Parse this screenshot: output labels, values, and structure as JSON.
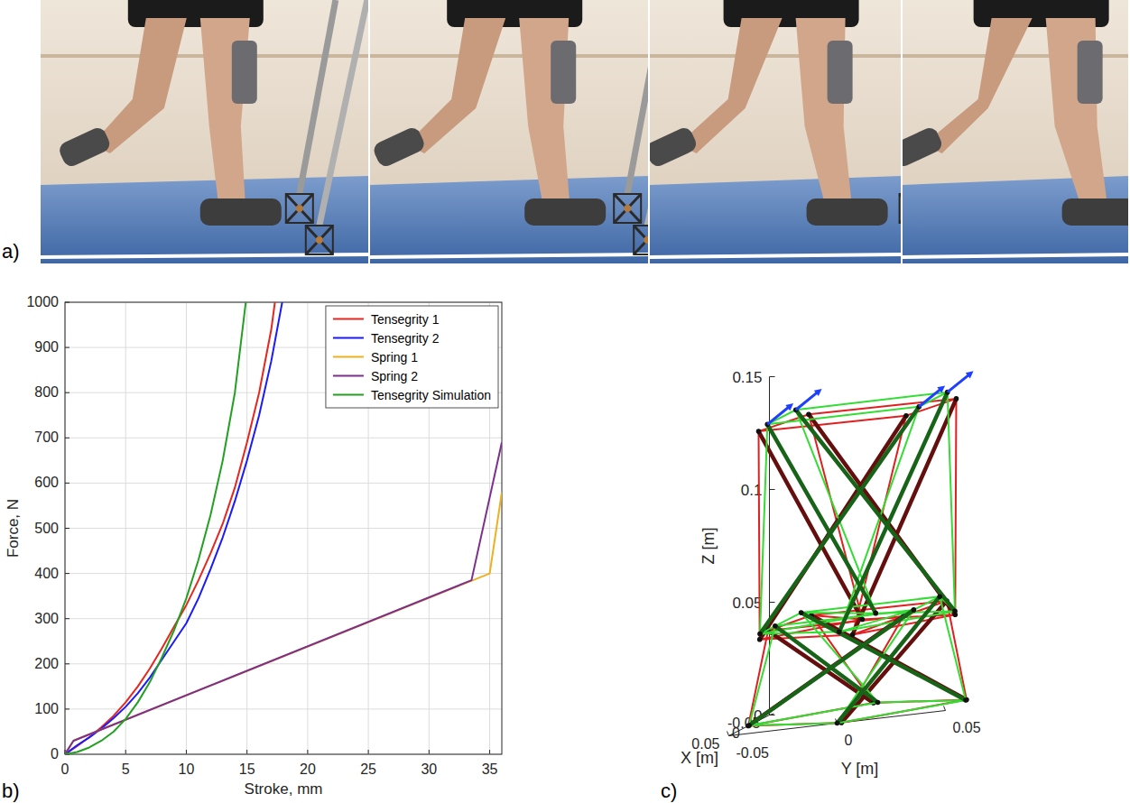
{
  "photo_panel": {
    "panel_label": "a)"
  },
  "chart_data": [
    {
      "type": "line",
      "panel_label": "b)",
      "xlabel": "Stroke, mm",
      "ylabel": "Force, N",
      "xlim": [
        0,
        36
      ],
      "ylim": [
        0,
        1000
      ],
      "xticks": [
        0,
        5,
        10,
        15,
        20,
        25,
        30,
        35
      ],
      "yticks": [
        0,
        100,
        200,
        300,
        400,
        500,
        600,
        700,
        800,
        900,
        1000
      ],
      "grid": true,
      "legend": "upper right",
      "series": [
        {
          "name": "Tensegrity 1",
          "color": "#e6261f",
          "x": [
            0,
            1,
            2,
            3,
            4,
            5,
            6,
            7,
            8,
            9,
            10,
            11,
            12,
            13,
            14,
            15,
            16,
            17,
            17.3
          ],
          "values": [
            0,
            18,
            38,
            60,
            85,
            115,
            150,
            190,
            235,
            283,
            330,
            385,
            445,
            510,
            590,
            690,
            800,
            940,
            1000
          ]
        },
        {
          "name": "Tensegrity 2",
          "color": "#1a1aff",
          "x": [
            0,
            1,
            2,
            3,
            4,
            5,
            6,
            7,
            8,
            9,
            10,
            11,
            12,
            13,
            14,
            15,
            16,
            17,
            17.9
          ],
          "values": [
            0,
            20,
            37,
            57,
            80,
            105,
            135,
            170,
            210,
            250,
            290,
            345,
            410,
            480,
            560,
            650,
            750,
            870,
            1000
          ]
        },
        {
          "name": "Spring 1",
          "color": "#edb120",
          "x": [
            0,
            0.7,
            35,
            36
          ],
          "values": [
            0,
            30,
            400,
            580
          ]
        },
        {
          "name": "Spring 2",
          "color": "#7e2f8e",
          "x": [
            0,
            0.7,
            33.5,
            36
          ],
          "values": [
            0,
            30,
            385,
            690
          ]
        },
        {
          "name": "Tensegrity Simulation",
          "color": "#22a022",
          "x": [
            0,
            1,
            2,
            3,
            4,
            5,
            6,
            7,
            8,
            9,
            10,
            11,
            12,
            13,
            14,
            14.9
          ],
          "values": [
            0,
            5,
            15,
            30,
            50,
            78,
            115,
            160,
            215,
            275,
            345,
            430,
            530,
            650,
            800,
            1000
          ]
        }
      ]
    },
    {
      "type": "wireframe3d",
      "panel_label": "c)",
      "xlabel": "X [m]",
      "ylabel": "Y [m]",
      "zlabel": "Z [m]",
      "xlim": [
        -0.05,
        0.05
      ],
      "ylim": [
        -0.05,
        0.05
      ],
      "zlim": [
        0,
        0.15
      ],
      "xticks": [
        -0.05,
        0,
        0.05
      ],
      "yticks": [
        -0.05,
        0,
        0.05
      ],
      "zticks": [
        0,
        0.05,
        0.1,
        0.15
      ],
      "grid": false,
      "struts": [
        [
          0,
          5
        ],
        [
          1,
          6
        ],
        [
          2,
          7
        ],
        [
          3,
          4
        ],
        [
          8,
          13
        ],
        [
          9,
          14
        ],
        [
          10,
          15
        ],
        [
          11,
          12
        ]
      ],
      "cables": [
        [
          0,
          1
        ],
        [
          1,
          2
        ],
        [
          2,
          3
        ],
        [
          3,
          0
        ],
        [
          4,
          5
        ],
        [
          5,
          6
        ],
        [
          6,
          7
        ],
        [
          7,
          4
        ],
        [
          8,
          9
        ],
        [
          9,
          10
        ],
        [
          10,
          11
        ],
        [
          11,
          8
        ],
        [
          12,
          13
        ],
        [
          13,
          14
        ],
        [
          14,
          15
        ],
        [
          15,
          12
        ],
        [
          0,
          4
        ],
        [
          1,
          5
        ],
        [
          2,
          6
        ],
        [
          3,
          7
        ],
        [
          8,
          12
        ],
        [
          9,
          13
        ],
        [
          10,
          14
        ],
        [
          11,
          15
        ],
        [
          4,
          8
        ],
        [
          5,
          9
        ],
        [
          6,
          10
        ],
        [
          7,
          11
        ]
      ],
      "series": [
        {
          "color": "#e02020",
          "nodes": [
            [
              0.05,
              0.002,
              0
            ],
            [
              -0.002,
              0.05,
              0
            ],
            [
              -0.05,
              -0.002,
              0
            ],
            [
              0.002,
              -0.05,
              0
            ],
            [
              0.036,
              0.028,
              0.043
            ],
            [
              -0.028,
              0.036,
              0.043
            ],
            [
              -0.036,
              -0.028,
              0.043
            ],
            [
              0.028,
              -0.036,
              0.043
            ],
            [
              0.044,
              0.006,
              0.038
            ],
            [
              -0.006,
              0.044,
              0.038
            ],
            [
              -0.044,
              -0.006,
              0.038
            ],
            [
              0.006,
              -0.044,
              0.038
            ],
            [
              0.04,
              0.03,
              0.132
            ],
            [
              -0.03,
              0.04,
              0.132
            ],
            [
              -0.04,
              -0.03,
              0.132
            ],
            [
              0.03,
              -0.04,
              0.132
            ]
          ]
        },
        {
          "color": "#33dd33",
          "nodes": [
            [
              0.05,
              0,
              0
            ],
            [
              0,
              0.05,
              0
            ],
            [
              -0.05,
              0,
              0
            ],
            [
              0,
              -0.05,
              0
            ],
            [
              0.032,
              0.032,
              0.045
            ],
            [
              -0.032,
              0.032,
              0.045
            ],
            [
              -0.032,
              -0.032,
              0.045
            ],
            [
              0.032,
              -0.032,
              0.045
            ],
            [
              0.045,
              0,
              0.04
            ],
            [
              0,
              0.045,
              0.04
            ],
            [
              -0.045,
              0,
              0.04
            ],
            [
              0,
              -0.045,
              0.04
            ],
            [
              0.035,
              0.035,
              0.135
            ],
            [
              -0.035,
              0.035,
              0.135
            ],
            [
              -0.035,
              -0.035,
              0.135
            ],
            [
              0.035,
              -0.035,
              0.135
            ]
          ]
        }
      ],
      "forces": [
        {
          "node": 12,
          "vector": [
            0,
            0.012,
            0.008
          ]
        },
        {
          "node": 13,
          "vector": [
            0,
            0.012,
            0.008
          ]
        },
        {
          "node": 14,
          "vector": [
            0,
            0.012,
            0.008
          ]
        },
        {
          "node": 15,
          "vector": [
            0,
            0.012,
            0.008
          ]
        }
      ]
    }
  ]
}
